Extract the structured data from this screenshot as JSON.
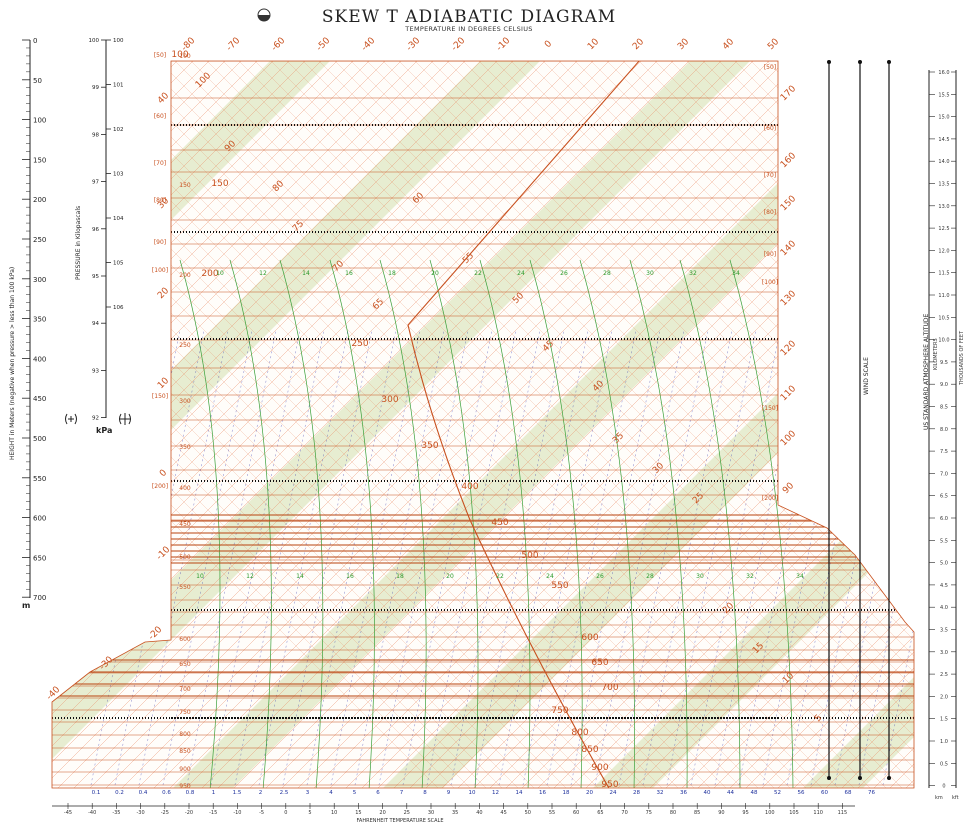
{
  "title": "SKEW  T  ADIABATIC DIAGRAM",
  "subtitle": "TEMPERATURE IN DEGREES CELSIUS",
  "bottom_label": "FAHRENHEIT TEMPERATURE SCALE",
  "left_height_label": "HEIGHT in Meters (negative when pressure > less than 100 kPa)",
  "left_height_unit": "m",
  "pressure_label": "PRESSURE in Kilopascals",
  "pressure_unit": "kPa",
  "wind_scale_label": "WIND SCALE",
  "altitude_label": "US STANDARD ATMOSPHERE ALTITUDE",
  "altitude_sub1": "KILOMETERS",
  "altitude_sub2": "THOUSANDS OF FEET",
  "right_units": [
    "km",
    "kft"
  ],
  "height_ticks": [
    "0",
    "50",
    "100",
    "150",
    "200",
    "250",
    "300",
    "350",
    "400",
    "450",
    "500",
    "550",
    "600",
    "650",
    "700"
  ],
  "kpa_left_ticks": [
    "100",
    "99",
    "98",
    "97",
    "96",
    "95",
    "94",
    "93",
    "92"
  ],
  "kpa_right_ticks": [
    "100",
    "101",
    "102",
    "103",
    "104",
    "105",
    "106"
  ],
  "altitude_ticks": [
    "16.0",
    "15.5",
    "15.0",
    "14.5",
    "14.0",
    "13.5",
    "13.0",
    "12.5",
    "12.0",
    "11.5",
    "11.0",
    "10.5",
    "10.0",
    "9.5",
    "9.0",
    "8.5",
    "8.0",
    "7.5",
    "7.0",
    "6.5",
    "6.0",
    "5.5",
    "5.0",
    "4.5",
    "4.0",
    "3.5",
    "3.0",
    "2.5",
    "2.0",
    "1.5",
    "1.0",
    "0.5",
    "0"
  ],
  "isobars_main": [
    "100",
    "150",
    "200",
    "250",
    "300",
    "350",
    "400",
    "450",
    "500",
    "550",
    "600",
    "650",
    "700",
    "750",
    "800",
    "850",
    "900",
    "950",
    "1000"
  ],
  "isobars_bracket": [
    "[50]",
    "[60]",
    "[70]",
    "[80]",
    "[90]",
    "[100]",
    "[150]",
    "[200]"
  ],
  "celsius_top": [
    "-80",
    "-70",
    "-60",
    "-50",
    "-40",
    "-30",
    "-20",
    "-10",
    "0",
    "10",
    "20",
    "30",
    "40",
    "50"
  ],
  "fahrenheit_bottom": [
    "-45",
    "-40",
    "-35",
    "-30",
    "-25",
    "-20",
    "-15",
    "-10",
    "-5",
    "0",
    "5",
    "10",
    "15",
    "20",
    "25",
    "30",
    "35",
    "40",
    "45",
    "50",
    "55",
    "60",
    "65",
    "70",
    "75",
    "80",
    "85",
    "90",
    "95",
    "100",
    "105",
    "110",
    "115"
  ],
  "celsius_left_diag": [
    "40",
    "30",
    "20",
    "10",
    "0",
    "-10",
    "-20",
    "-30",
    "-40"
  ],
  "celsius_right_diag": [
    "170",
    "160",
    "150",
    "140",
    "130",
    "120",
    "110",
    "100",
    "90"
  ],
  "adiabat_labels": [
    "100",
    "90",
    "80",
    "75",
    "70",
    "65",
    "60",
    "55",
    "50",
    "45",
    "40",
    "35",
    "30",
    "25",
    "20",
    "15",
    "10",
    "5"
  ],
  "mixing_ratio_labels": [
    "0.1",
    "0.2",
    "0.4",
    "0.6",
    "0.8",
    "1",
    "1.5",
    "2",
    "2.5",
    "3",
    "4",
    "5",
    "6",
    "7",
    "8",
    "9",
    "10",
    "12",
    "14",
    "16",
    "18",
    "20",
    "24",
    "28",
    "32",
    "36",
    "40",
    "44",
    "48",
    "52",
    "56",
    "60",
    "68",
    "76"
  ],
  "green_labels": [
    "10",
    "12",
    "14",
    "16",
    "18",
    "20",
    "22",
    "24",
    "26",
    "28",
    "30",
    "32",
    "34"
  ],
  "colors": {
    "isobar": "#c8501e",
    "isotherm": "#e8825a",
    "adiabat": "#8fae4c",
    "moist_adiabat": "#3aa03a",
    "mixing_ratio": "#2a2aa8",
    "band": "#e4ebcc",
    "text": "#222222"
  }
}
